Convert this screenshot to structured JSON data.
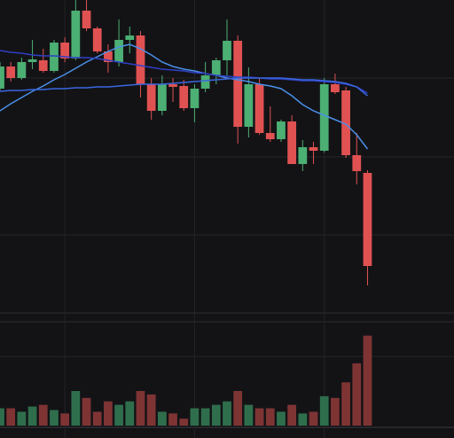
{
  "chart_data": {
    "type": "candlestick",
    "x": [
      0,
      1,
      2,
      3,
      4,
      5,
      6,
      7,
      8,
      9,
      10,
      11,
      12,
      13,
      14,
      15,
      16,
      17,
      18,
      19,
      20,
      21,
      22,
      23,
      24,
      25,
      26,
      27,
      28,
      29,
      30,
      31,
      32,
      33,
      34
    ],
    "xlim": [
      0,
      42
    ],
    "xticks": [
      6,
      18,
      30
    ],
    "ylim": [
      0,
      360
    ],
    "yticks": [
      95,
      183,
      272
    ],
    "open": [
      260,
      285,
      272,
      290,
      292,
      280,
      312,
      294,
      348,
      328,
      302,
      290,
      315,
      320,
      265,
      235,
      265,
      263,
      238,
      260,
      275,
      292,
      314,
      217,
      265,
      210,
      203,
      223,
      175,
      194,
      190,
      265,
      258,
      185,
      165
    ],
    "close": [
      285,
      272,
      290,
      293,
      280,
      312,
      294,
      348,
      328,
      302,
      290,
      315,
      320,
      265,
      235,
      265,
      262,
      238,
      260,
      275,
      292,
      314,
      217,
      265,
      210,
      203,
      223,
      175,
      194,
      190,
      265,
      256,
      185,
      167,
      60
    ],
    "high": [
      290,
      290,
      295,
      315,
      305,
      315,
      318,
      360,
      360,
      330,
      310,
      338,
      330,
      325,
      272,
      275,
      272,
      270,
      265,
      290,
      295,
      338,
      320,
      284,
      272,
      240,
      225,
      230,
      202,
      200,
      272,
      277,
      262,
      210,
      168
    ],
    "low": [
      258,
      268,
      270,
      282,
      278,
      278,
      290,
      292,
      325,
      300,
      278,
      285,
      300,
      250,
      225,
      230,
      245,
      235,
      222,
      256,
      265,
      275,
      198,
      205,
      208,
      200,
      200,
      175,
      167,
      175,
      188,
      254,
      182,
      152,
      38
    ],
    "up_color": "#4caf73",
    "down_color": "#e05252",
    "volume": [
      20,
      20,
      16,
      22,
      24,
      18,
      14,
      40,
      32,
      16,
      28,
      24,
      28,
      40,
      36,
      16,
      14,
      8,
      20,
      20,
      24,
      28,
      40,
      24,
      20,
      20,
      16,
      24,
      14,
      16,
      34,
      32,
      50,
      72,
      104
    ],
    "volume_ylim": [
      0,
      120
    ],
    "volume_yticks": [
      80
    ],
    "volume_up_color": "#2f6e4c",
    "volume_down_color": "#7f3434",
    "series": [
      {
        "color": "#4a8fe8",
        "values": [
          235,
          243,
          250,
          257,
          263,
          270,
          276,
          283,
          290,
          296,
          302,
          307,
          310,
          305,
          298,
          290,
          285,
          282,
          280,
          277,
          275,
          272,
          270,
          268,
          265,
          263,
          260,
          252,
          242,
          235,
          230,
          225,
          220,
          208,
          192
        ]
      },
      {
        "color": "#2f3fc4",
        "values": [
          303,
          301,
          300,
          298,
          297,
          297,
          296,
          295,
          295,
          294,
          292,
          290,
          288,
          286,
          284,
          282,
          281,
          280,
          278,
          277,
          275,
          274,
          273,
          273,
          272,
          271,
          271,
          270,
          269,
          269,
          268,
          267,
          265,
          262,
          255
        ]
      },
      {
        "color": "#3a66e0",
        "values": [
          257,
          258,
          258,
          259,
          259,
          260,
          260,
          261,
          261,
          262,
          262,
          263,
          264,
          265,
          265,
          265,
          266,
          267,
          268,
          269,
          270,
          271,
          272,
          272,
          272,
          272,
          272,
          271,
          270,
          270,
          269,
          268,
          266,
          262,
          252
        ]
      }
    ],
    "grid": true
  }
}
